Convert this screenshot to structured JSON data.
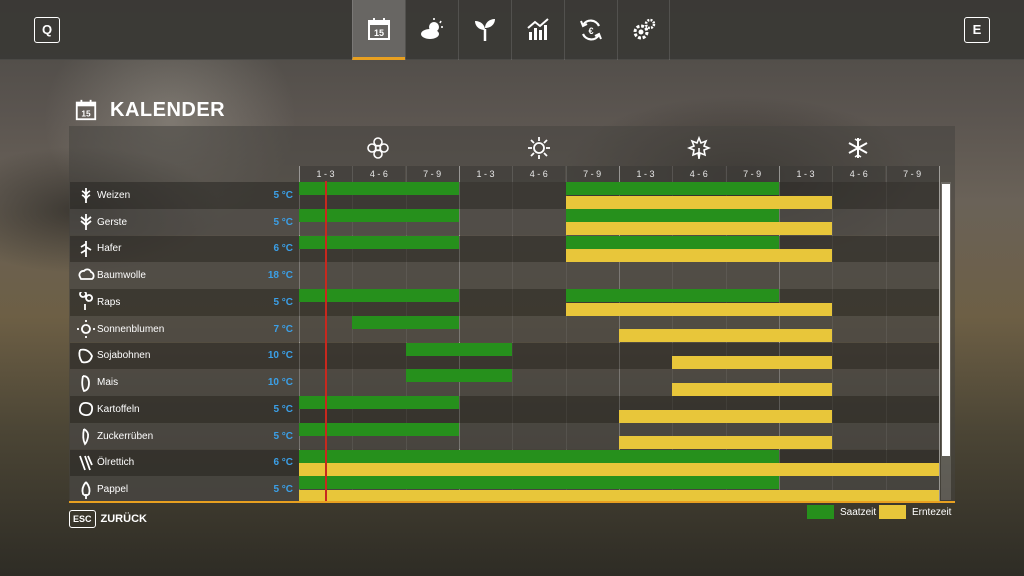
{
  "topbar": {
    "left_key": "Q",
    "right_key": "E",
    "tabs": [
      {
        "icon": "calendar-icon",
        "label": "15",
        "active": true
      },
      {
        "icon": "weather-icon",
        "active": false
      },
      {
        "icon": "plant-icon",
        "active": false
      },
      {
        "icon": "statistics-icon",
        "active": false
      },
      {
        "icon": "finance-icon",
        "active": false
      },
      {
        "icon": "settings-icon",
        "active": false
      }
    ],
    "accent": "#e8a020"
  },
  "page": {
    "title": "KALENDER",
    "title_icon_day": "15"
  },
  "seasons": [
    {
      "name": "spring",
      "icon": "flower-icon"
    },
    {
      "name": "summer",
      "icon": "sun-icon"
    },
    {
      "name": "autumn",
      "icon": "leaf-icon"
    },
    {
      "name": "winter",
      "icon": "snowflake-icon"
    }
  ],
  "months": [
    "1 - 3",
    "4 - 6",
    "7 - 9",
    "1 - 3",
    "4 - 6",
    "7 - 9",
    "1 - 3",
    "4 - 6",
    "7 - 9",
    "1 - 3",
    "4 - 6",
    "7 - 9"
  ],
  "crops": [
    {
      "name": "Weizen",
      "temp": "5 °C",
      "icon": "wheat-icon",
      "sow": [
        [
          1,
          3
        ],
        [
          6,
          9
        ]
      ],
      "harvest": [
        [
          6,
          10
        ]
      ]
    },
    {
      "name": "Gerste",
      "temp": "5 °C",
      "icon": "barley-icon",
      "sow": [
        [
          1,
          3
        ],
        [
          6,
          9
        ]
      ],
      "harvest": [
        [
          6,
          10
        ]
      ]
    },
    {
      "name": "Hafer",
      "temp": "6 °C",
      "icon": "oat-icon",
      "sow": [
        [
          1,
          3
        ],
        [
          6,
          9
        ]
      ],
      "harvest": [
        [
          6,
          10
        ]
      ]
    },
    {
      "name": "Baumwolle",
      "temp": "18 °C",
      "icon": "cotton-icon",
      "sow": [],
      "harvest": []
    },
    {
      "name": "Raps",
      "temp": "5 °C",
      "icon": "canola-icon",
      "sow": [
        [
          1,
          3
        ],
        [
          6,
          9
        ]
      ],
      "harvest": [
        [
          6,
          10
        ]
      ]
    },
    {
      "name": "Sonnenblumen",
      "temp": "7 °C",
      "icon": "sunflower-icon",
      "sow": [
        [
          2,
          3
        ]
      ],
      "harvest": [
        [
          7,
          10
        ]
      ]
    },
    {
      "name": "Sojabohnen",
      "temp": "10 °C",
      "icon": "soybean-icon",
      "sow": [
        [
          3,
          4
        ]
      ],
      "harvest": [
        [
          8,
          10
        ]
      ]
    },
    {
      "name": "Mais",
      "temp": "10 °C",
      "icon": "corn-icon",
      "sow": [
        [
          3,
          4
        ]
      ],
      "harvest": [
        [
          8,
          10
        ]
      ]
    },
    {
      "name": "Kartoffeln",
      "temp": "5 °C",
      "icon": "potato-icon",
      "sow": [
        [
          1,
          3
        ]
      ],
      "harvest": [
        [
          7,
          10
        ]
      ]
    },
    {
      "name": "Zuckerrüben",
      "temp": "5 °C",
      "icon": "sugarbeet-icon",
      "sow": [
        [
          1,
          3
        ]
      ],
      "harvest": [
        [
          7,
          10
        ]
      ]
    },
    {
      "name": "Ölrettich",
      "temp": "6 °C",
      "icon": "oilradish-icon",
      "sow": [
        [
          1,
          9
        ]
      ],
      "harvest": [
        [
          1,
          12
        ]
      ]
    },
    {
      "name": "Pappel",
      "temp": "5 °C",
      "icon": "poplar-icon",
      "sow": [
        [
          1,
          9
        ]
      ],
      "harvest": [
        [
          1,
          12
        ]
      ]
    }
  ],
  "footer": {
    "esc_key": "ESC",
    "back_label": "ZURÜCK",
    "legend": [
      {
        "label": "Saatzeit",
        "color": "#26901c"
      },
      {
        "label": "Erntezeit",
        "color": "#e8c63a"
      }
    ]
  }
}
